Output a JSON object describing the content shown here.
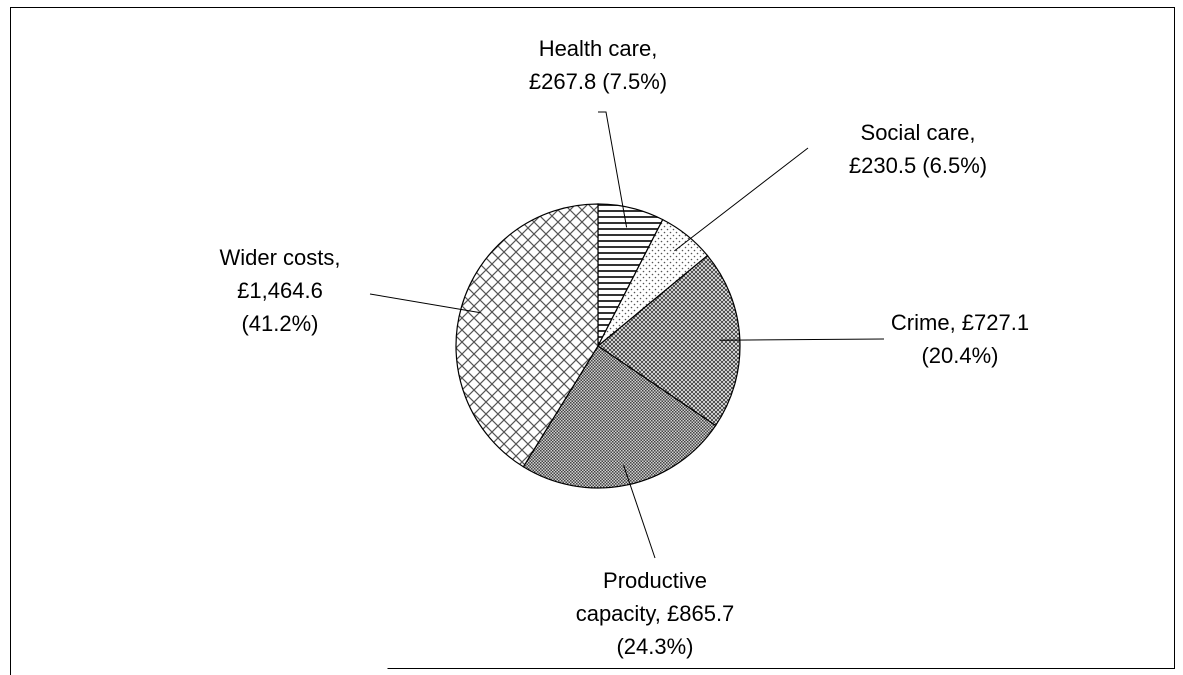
{
  "chart_data": {
    "type": "pie",
    "title": "",
    "slices": [
      {
        "name": "Health care",
        "value": 267.8,
        "percent": 7.5,
        "label_lines": [
          "Health care,",
          "£267.8 (7.5%)"
        ]
      },
      {
        "name": "Social care",
        "value": 230.5,
        "percent": 6.5,
        "label_lines": [
          "Social care,",
          "£230.5 (6.5%)"
        ]
      },
      {
        "name": "Crime",
        "value": 727.1,
        "percent": 20.4,
        "label_lines": [
          "Crime, £727.1",
          "(20.4%)"
        ]
      },
      {
        "name": "Productive capacity",
        "value": 865.7,
        "percent": 24.3,
        "label_lines": [
          "Productive",
          "capacity, £865.7",
          "(24.3%)"
        ]
      },
      {
        "name": "Wider costs",
        "value": 1464.6,
        "percent": 41.2,
        "label_lines": [
          "Wider costs,",
          "£1,464.6",
          "(41.2%)"
        ]
      }
    ],
    "start_angle_deg": 0,
    "direction": "clockwise",
    "legend": "none"
  }
}
